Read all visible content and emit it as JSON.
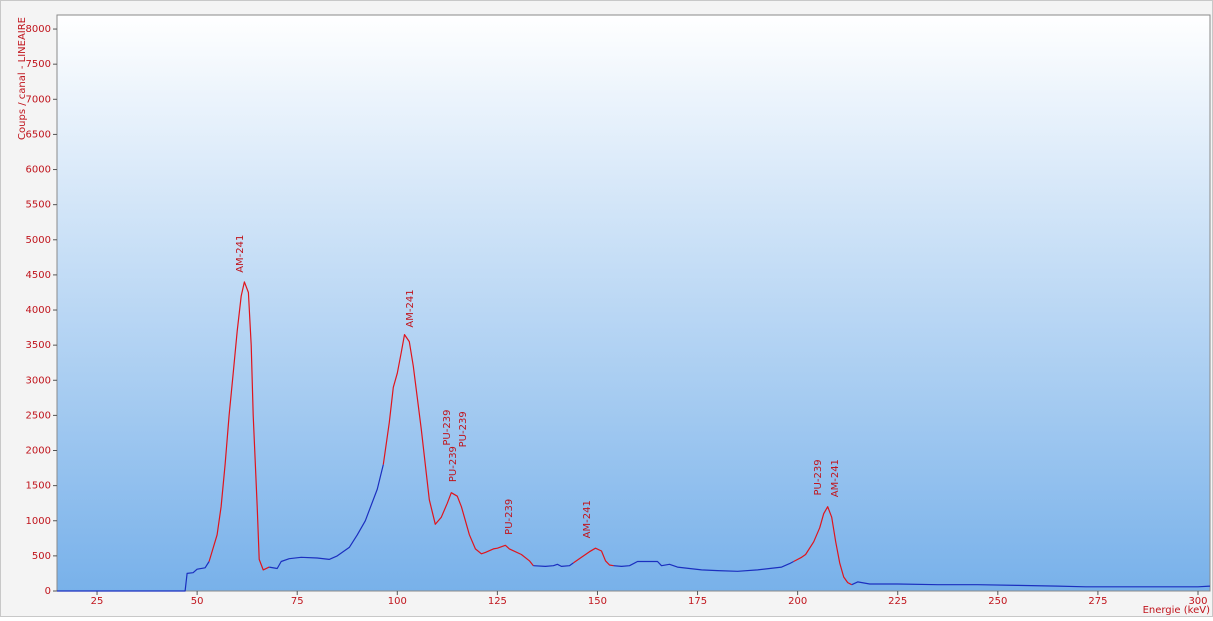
{
  "chart_data": {
    "type": "line",
    "y_label": "Coups / canal - LINEAIRE",
    "x_label": "Energie (keV)",
    "xlim": [
      15,
      303
    ],
    "ylim": [
      0,
      8200
    ],
    "xticks": [
      25,
      50,
      75,
      100,
      125,
      150,
      175,
      200,
      225,
      250,
      275,
      300
    ],
    "yticks": [
      0,
      500,
      1000,
      1500,
      2000,
      2500,
      3000,
      3500,
      4000,
      4500,
      5000,
      5500,
      6000,
      6500,
      7000,
      7500,
      8000
    ],
    "series": [
      {
        "color": "#1b2fbf",
        "x": [
          15,
          47,
          47.5,
          49,
          50,
          52,
          53
        ],
        "values": [
          0,
          0,
          250,
          260,
          310,
          330,
          420
        ]
      },
      {
        "color": "#e0141c",
        "x": [
          53,
          55,
          56,
          57,
          58,
          59,
          60,
          61,
          61.8,
          62.8,
          63.5,
          64,
          65,
          65.5,
          66.5,
          68
        ],
        "values": [
          420,
          800,
          1200,
          1800,
          2500,
          3100,
          3700,
          4200,
          4400,
          4250,
          3500,
          2500,
          1200,
          450,
          300,
          340
        ]
      },
      {
        "color": "#1b2fbf",
        "x": [
          68,
          70,
          71,
          73,
          76,
          80,
          83,
          85,
          88,
          90,
          92,
          93,
          95,
          96.5
        ],
        "values": [
          340,
          320,
          420,
          460,
          480,
          470,
          450,
          500,
          620,
          800,
          1000,
          1150,
          1450,
          1800
        ]
      },
      {
        "color": "#e0141c",
        "x": [
          96.5,
          98,
          99,
          100,
          101,
          101.8,
          103,
          104,
          106,
          108,
          109.5,
          111,
          112.5,
          113.5,
          115,
          116,
          118,
          119.5,
          121,
          122,
          124,
          125,
          127,
          128,
          131,
          133,
          134
        ],
        "values": [
          1800,
          2400,
          2900,
          3100,
          3400,
          3650,
          3550,
          3200,
          2300,
          1300,
          950,
          1050,
          1250,
          1400,
          1350,
          1200,
          800,
          600,
          530,
          550,
          600,
          610,
          650,
          600,
          520,
          430,
          360
        ]
      },
      {
        "color": "#1b2fbf",
        "x": [
          134,
          137,
          139,
          140,
          141,
          143,
          144
        ],
        "values": [
          360,
          350,
          360,
          380,
          350,
          360,
          400
        ]
      },
      {
        "color": "#e0141c",
        "x": [
          144,
          146,
          148,
          149.5,
          151,
          152,
          153,
          154
        ],
        "values": [
          400,
          480,
          560,
          610,
          570,
          430,
          370,
          360
        ]
      },
      {
        "color": "#1b2fbf",
        "x": [
          154,
          156,
          158,
          160,
          165,
          166,
          168,
          170,
          173,
          176,
          180,
          185,
          190,
          193,
          196,
          198,
          199
        ],
        "values": [
          360,
          350,
          360,
          420,
          420,
          360,
          380,
          340,
          320,
          300,
          290,
          280,
          300,
          320,
          340,
          390,
          420
        ]
      },
      {
        "color": "#e0141c",
        "x": [
          199,
          201,
          202,
          204,
          205.5,
          206.5,
          207.5,
          208.5,
          209.5,
          210.5,
          211.5,
          212.5,
          213.5
        ],
        "values": [
          420,
          480,
          520,
          700,
          900,
          1100,
          1200,
          1050,
          700,
          400,
          200,
          120,
          90
        ]
      },
      {
        "color": "#1b2fbf",
        "x": [
          213.5,
          215,
          218,
          225,
          235,
          245,
          255,
          265,
          272,
          280,
          290,
          300,
          303
        ],
        "values": [
          90,
          130,
          100,
          100,
          90,
          90,
          80,
          70,
          60,
          60,
          60,
          60,
          70
        ]
      }
    ],
    "annotations": [
      {
        "text": "AM-241",
        "x": 60.7,
        "y": 4530
      },
      {
        "text": "AM-241",
        "x": 103.2,
        "y": 3750
      },
      {
        "text": "PU-239",
        "x": 112.4,
        "y": 2070
      },
      {
        "text": "PU-239",
        "x": 113.9,
        "y": 1550
      },
      {
        "text": "PU-239",
        "x": 116.4,
        "y": 2045
      },
      {
        "text": "PU-239",
        "x": 127.9,
        "y": 800
      },
      {
        "text": "AM-241",
        "x": 147.4,
        "y": 750
      },
      {
        "text": "PU-239",
        "x": 205.1,
        "y": 1360
      },
      {
        "text": "AM-241",
        "x": 209.3,
        "y": 1335
      }
    ]
  }
}
